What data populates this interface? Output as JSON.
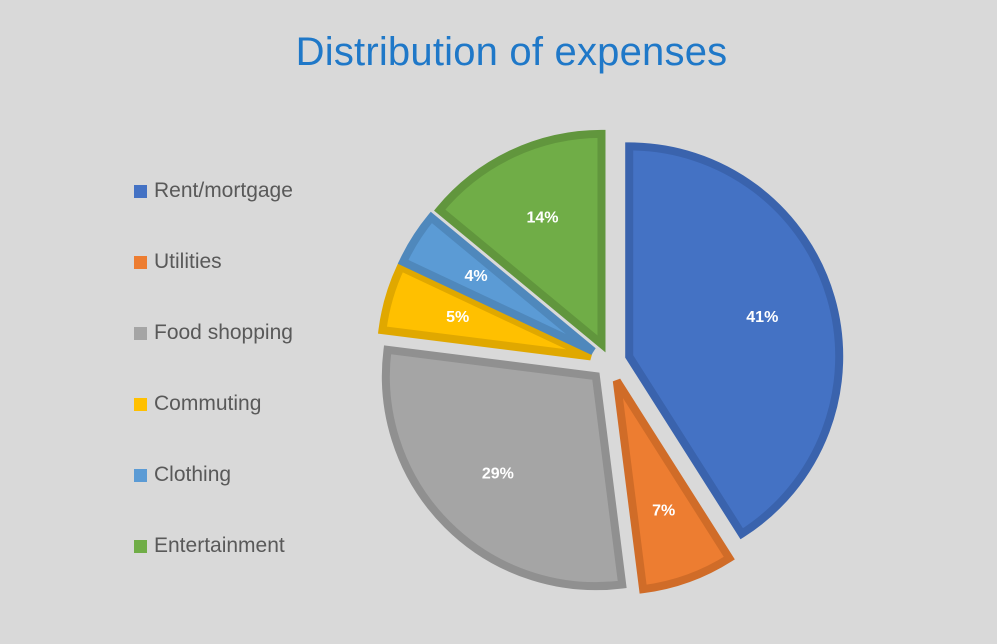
{
  "chart_data": {
    "type": "pie",
    "title": "Distribution of expenses",
    "categories": [
      "Rent/mortgage",
      "Utilities",
      "Food shopping",
      "Commuting",
      "Clothing",
      "Entertainment"
    ],
    "values": [
      41,
      7,
      29,
      5,
      4,
      14
    ],
    "value_labels": [
      "41%",
      "7%",
      "29%",
      "5%",
      "4%",
      "14%"
    ],
    "colors": [
      "#4472c4",
      "#ed7d31",
      "#a5a5a5",
      "#ffc000",
      "#5b9bd5",
      "#70ad47"
    ],
    "border_colors": [
      "#3a63ad",
      "#d06c28",
      "#909090",
      "#e0a800",
      "#4f88bc",
      "#61963d"
    ],
    "exploded": true,
    "legend_position": "left"
  }
}
